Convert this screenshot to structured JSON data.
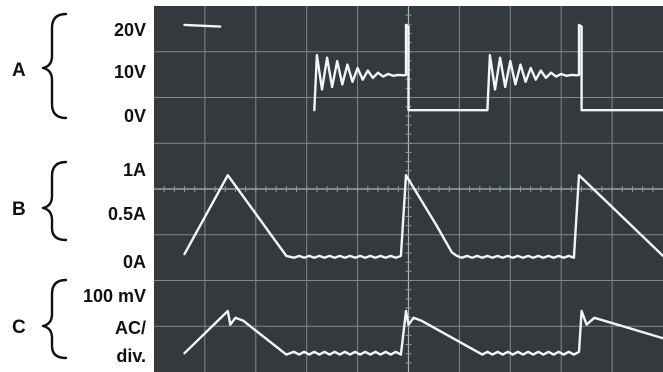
{
  "chart_data": {
    "type": "line",
    "background": "#33393c",
    "grid_color": "#7d8a8c",
    "trace_color": "#eef6f6",
    "label_color": "#111111",
    "grid": true,
    "x_divisions": 10,
    "y_divisions": 8,
    "channels": [
      {
        "id": "A",
        "label": "A",
        "ticks": [
          "20V",
          "10V",
          "0V"
        ],
        "tick_values": [
          20,
          10,
          0
        ],
        "unit": "V",
        "ylim": [
          -2,
          24
        ]
      },
      {
        "id": "B",
        "label": "B",
        "ticks": [
          "1A",
          "0.5A",
          "0A"
        ],
        "tick_values": [
          1,
          0.5,
          0
        ],
        "unit": "A",
        "ylim": [
          -0.1,
          1.15
        ]
      },
      {
        "id": "C",
        "label": "C",
        "ticks": [
          "100 mV",
          "AC/",
          "div."
        ],
        "tick_values": [],
        "unit": "",
        "ylim": [
          -1.25,
          1.25
        ]
      }
    ],
    "series": [
      {
        "channel": "A",
        "x": [
          0.6,
          1.3,
          1.3,
          3.15,
          3.15,
          3.2,
          3.3,
          3.4,
          3.5,
          3.6,
          3.7,
          3.8,
          3.9,
          4.0,
          4.1,
          4.2,
          4.3,
          4.4,
          4.5,
          4.6,
          4.7,
          4.8,
          4.9,
          4.95,
          4.95,
          5.0,
          5.0,
          6.55,
          6.55,
          6.6,
          6.7,
          6.8,
          6.9,
          7.0,
          7.1,
          7.2,
          7.3,
          7.4,
          7.5,
          7.6,
          7.7,
          7.8,
          7.9,
          8.0,
          8.1,
          8.2,
          8.3,
          8.35,
          8.35,
          8.4,
          8.4,
          10.0
        ],
        "y": [
          21,
          20.6,
          null,
          1.2,
          1.2,
          14,
          6,
          13.4,
          6.6,
          12.6,
          7.2,
          11.8,
          7.8,
          11.0,
          8.3,
          10.4,
          8.7,
          9.9,
          9.0,
          9.6,
          9.2,
          9.4,
          9.3,
          9.4,
          21,
          20.6,
          1.2,
          1.2,
          1.2,
          14,
          6,
          13.4,
          6.6,
          12.6,
          7.2,
          11.8,
          7.8,
          11.0,
          8.3,
          10.4,
          8.7,
          9.9,
          9.0,
          9.6,
          9.2,
          9.4,
          9.3,
          9.4,
          21,
          20.6,
          1.2,
          1.2
        ]
      },
      {
        "channel": "B",
        "x": [
          0.6,
          1.45,
          2.6,
          2.75,
          2.85,
          2.95,
          3.05,
          3.15,
          3.25,
          3.35,
          3.45,
          3.55,
          3.65,
          3.75,
          3.85,
          3.95,
          4.05,
          4.15,
          4.25,
          4.35,
          4.45,
          4.55,
          4.65,
          4.75,
          4.85,
          4.95,
          5.55,
          5.65,
          5.75,
          5.85,
          5.95,
          6.05,
          6.15,
          6.25,
          6.35,
          6.45,
          6.55,
          6.65,
          6.75,
          6.85,
          6.95,
          7.05,
          7.15,
          7.25,
          7.35,
          7.45,
          7.55,
          7.65,
          7.75,
          7.85,
          7.95,
          8.05,
          8.15,
          8.25,
          8.35,
          10.0
        ],
        "y": [
          0.1,
          0.98,
          0.08,
          0.06,
          0.08,
          0.06,
          0.08,
          0.06,
          0.08,
          0.06,
          0.08,
          0.06,
          0.08,
          0.06,
          0.08,
          0.06,
          0.08,
          0.06,
          0.08,
          0.06,
          0.08,
          0.06,
          0.08,
          0.06,
          0.08,
          0.98,
          0.42,
          0.32,
          0.22,
          0.12,
          0.08,
          0.06,
          0.08,
          0.06,
          0.08,
          0.06,
          0.08,
          0.06,
          0.08,
          0.06,
          0.08,
          0.06,
          0.08,
          0.06,
          0.08,
          0.06,
          0.08,
          0.06,
          0.08,
          0.06,
          0.08,
          0.06,
          0.08,
          0.06,
          0.98,
          0.08
        ]
      },
      {
        "channel": "C",
        "x": [
          0.6,
          1.45,
          1.5,
          1.6,
          1.75,
          2.6,
          2.75,
          2.85,
          2.95,
          3.05,
          3.15,
          3.25,
          3.35,
          3.45,
          3.55,
          3.65,
          3.75,
          3.85,
          3.95,
          4.05,
          4.15,
          4.25,
          4.35,
          4.45,
          4.55,
          4.65,
          4.75,
          4.85,
          4.95,
          5.0,
          5.1,
          5.25,
          6.45,
          6.55,
          6.65,
          6.75,
          6.85,
          6.95,
          7.05,
          7.15,
          7.25,
          7.35,
          7.45,
          7.55,
          7.65,
          7.75,
          7.85,
          7.95,
          8.05,
          8.15,
          8.25,
          8.35,
          8.4,
          8.5,
          8.65,
          10.0
        ],
        "y": [
          -1.0,
          0.55,
          0.05,
          0.3,
          0.2,
          -1.05,
          -0.95,
          -1.05,
          -0.95,
          -1.05,
          -0.95,
          -1.05,
          -0.95,
          -1.05,
          -0.95,
          -1.05,
          -0.95,
          -1.05,
          -0.95,
          -1.05,
          -0.95,
          -1.05,
          -0.95,
          -1.05,
          -0.95,
          -1.05,
          -0.95,
          -1.05,
          0.55,
          0.05,
          0.3,
          0.2,
          -1.05,
          -0.95,
          -1.05,
          -0.95,
          -1.05,
          -0.95,
          -1.05,
          -0.95,
          -1.05,
          -0.95,
          -1.05,
          -0.95,
          -1.05,
          -0.95,
          -1.05,
          -0.95,
          -1.05,
          -0.95,
          -1.05,
          -0.95,
          0.55,
          0.05,
          0.3,
          -0.45
        ]
      }
    ]
  }
}
